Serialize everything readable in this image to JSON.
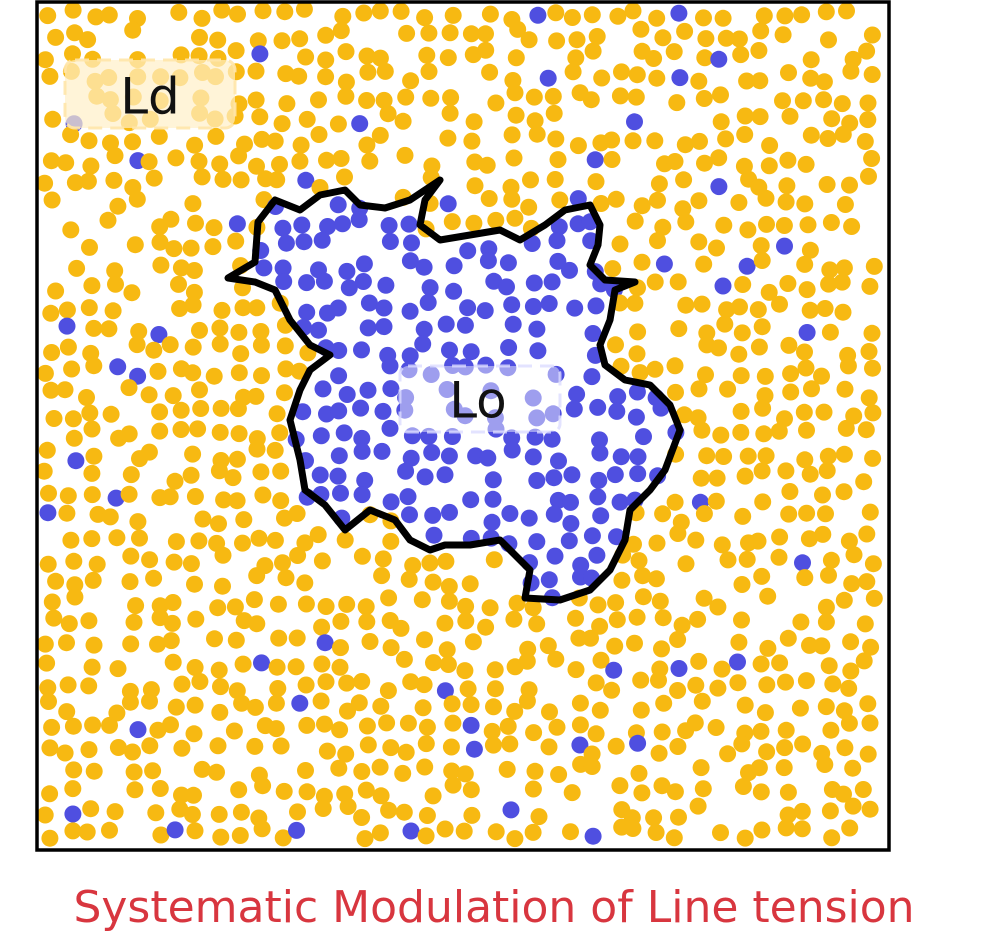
{
  "labels": {
    "ld": "Ld",
    "lo": "Lo"
  },
  "caption": "Systematic Modulation of Line tension"
}
